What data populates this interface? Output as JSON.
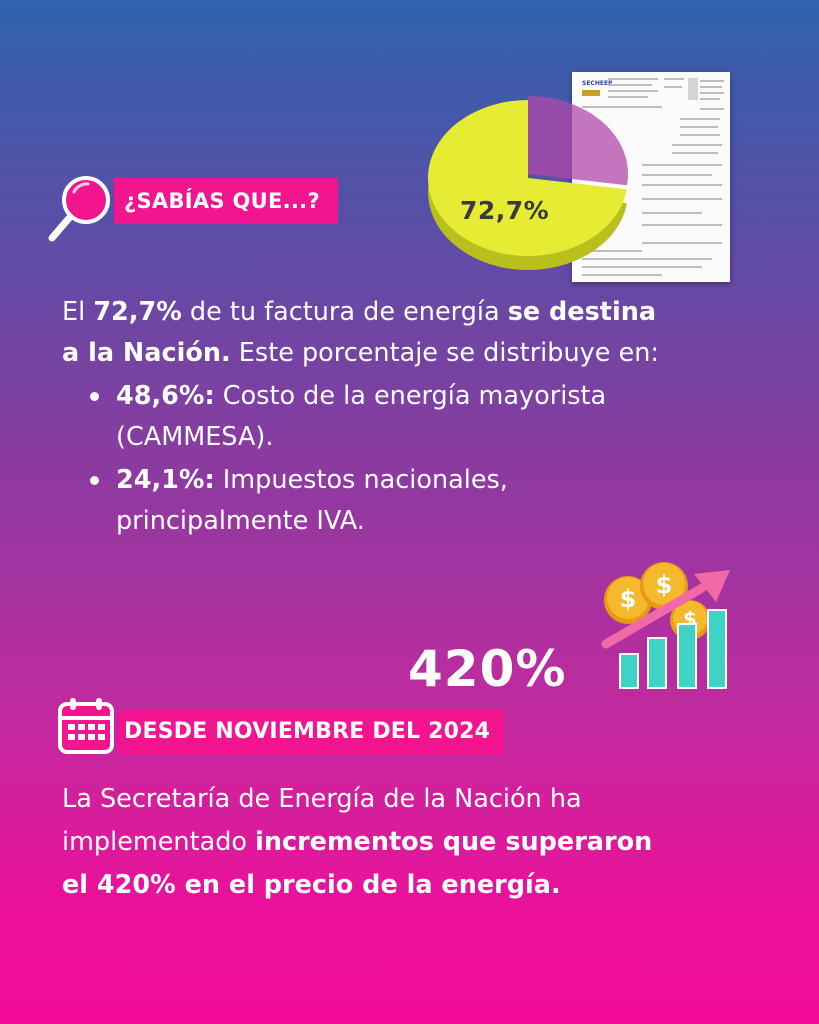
{
  "colors": {
    "badge": "#f2158f",
    "pie_major": "#e6ec33",
    "pie_minor": "#b04aa8",
    "bars": "#3fd3c6",
    "coins": "#f5b92d",
    "arrow": "#f06aa8"
  },
  "bill": {
    "brand": "SECHEEP"
  },
  "pie": {
    "label": "72,7%",
    "value": 72.7
  },
  "section1": {
    "heading": "¿SABÍAS QUE...?",
    "p_el": "El ",
    "p_pct": "72,7%",
    "p_mid": " de tu factura de energía ",
    "p_bold1": "se destina",
    "p_bold2": "a la Nación.",
    "p_end": " Este porcentaje se distribuye en:",
    "bullets": [
      {
        "bold": "48,6%:",
        "text": " Costo de la energía mayorista",
        "text2": "(CAMMESA)."
      },
      {
        "bold": "24,1%:",
        "text": " Impuestos nacionales,",
        "text2": "principalmente IVA."
      }
    ]
  },
  "stat": {
    "big": "420%"
  },
  "section2": {
    "heading": "DESDE NOVIEMBRE DEL 2024",
    "p_start": "La Secretaría de Energía de la Nación ha",
    "p_start2": "implementado ",
    "p_bold1": "incrementos que superaron",
    "p_bold2": "el 420% en el precio de la energía."
  },
  "icons": {
    "search": "magnifier-icon",
    "calendar": "calendar-icon",
    "growth": "chart-growth-icon"
  }
}
